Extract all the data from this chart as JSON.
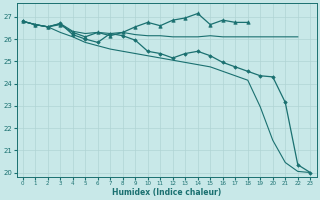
{
  "xlabel": "Humidex (Indice chaleur)",
  "ylabel": "",
  "bg_color": "#c8e8e8",
  "grid_color": "#b0d4d4",
  "line_color": "#1a7070",
  "xlim": [
    -0.5,
    23.5
  ],
  "ylim": [
    19.8,
    27.6
  ],
  "yticks": [
    20,
    21,
    22,
    23,
    24,
    25,
    26,
    27
  ],
  "xticks": [
    0,
    1,
    2,
    3,
    4,
    5,
    6,
    7,
    8,
    9,
    10,
    11,
    12,
    13,
    14,
    15,
    16,
    17,
    18,
    19,
    20,
    21,
    22,
    23
  ],
  "series": [
    {
      "x": [
        0,
        1,
        2,
        3,
        4,
        5,
        6,
        7,
        8,
        9,
        10,
        11,
        12,
        13,
        14,
        15,
        16,
        17,
        18,
        19,
        20,
        21,
        22
      ],
      "y": [
        26.8,
        26.65,
        26.55,
        26.7,
        26.35,
        26.25,
        26.3,
        26.25,
        26.3,
        26.2,
        26.15,
        26.15,
        26.1,
        26.1,
        26.1,
        26.15,
        26.1,
        26.1,
        26.1,
        26.1,
        26.1,
        26.1,
        26.1
      ],
      "marker": null,
      "linestyle": "-",
      "linewidth": 0.8
    },
    {
      "x": [
        0,
        1,
        2,
        3,
        4,
        5,
        6,
        7,
        8,
        9,
        10,
        11,
        12,
        13,
        14,
        15,
        16,
        17,
        18,
        19,
        20,
        21,
        22,
        23
      ],
      "y": [
        26.8,
        26.65,
        26.55,
        26.7,
        26.2,
        26.0,
        25.85,
        26.25,
        26.15,
        25.95,
        25.45,
        25.35,
        25.15,
        25.35,
        25.45,
        25.25,
        24.95,
        24.75,
        24.55,
        24.35,
        24.3,
        23.15,
        20.35,
        20.0
      ],
      "marker": "D",
      "markersize": 1.8,
      "linestyle": "-",
      "linewidth": 0.9
    },
    {
      "x": [
        0,
        1,
        2,
        3,
        4,
        5,
        6,
        7,
        8,
        9,
        10,
        11,
        12,
        13,
        14,
        15,
        16,
        17,
        18,
        19,
        20,
        21,
        22,
        23
      ],
      "y": [
        26.8,
        26.65,
        26.55,
        26.3,
        26.1,
        25.85,
        25.7,
        25.55,
        25.45,
        25.35,
        25.25,
        25.15,
        25.05,
        24.95,
        24.85,
        24.75,
        24.55,
        24.35,
        24.15,
        22.95,
        21.45,
        20.45,
        20.05,
        20.0
      ],
      "marker": null,
      "linestyle": "-",
      "linewidth": 0.8
    },
    {
      "x": [
        0,
        1,
        2,
        3,
        4,
        5,
        6,
        7,
        8,
        9,
        10,
        11,
        12,
        13,
        14,
        15,
        16,
        17,
        18
      ],
      "y": [
        26.8,
        26.65,
        26.55,
        26.65,
        26.3,
        26.1,
        26.3,
        26.15,
        26.3,
        26.55,
        26.75,
        26.6,
        26.85,
        26.95,
        27.15,
        26.65,
        26.85,
        26.75,
        26.75
      ],
      "marker": "^",
      "markersize": 2.5,
      "linestyle": "-",
      "linewidth": 0.9
    }
  ]
}
